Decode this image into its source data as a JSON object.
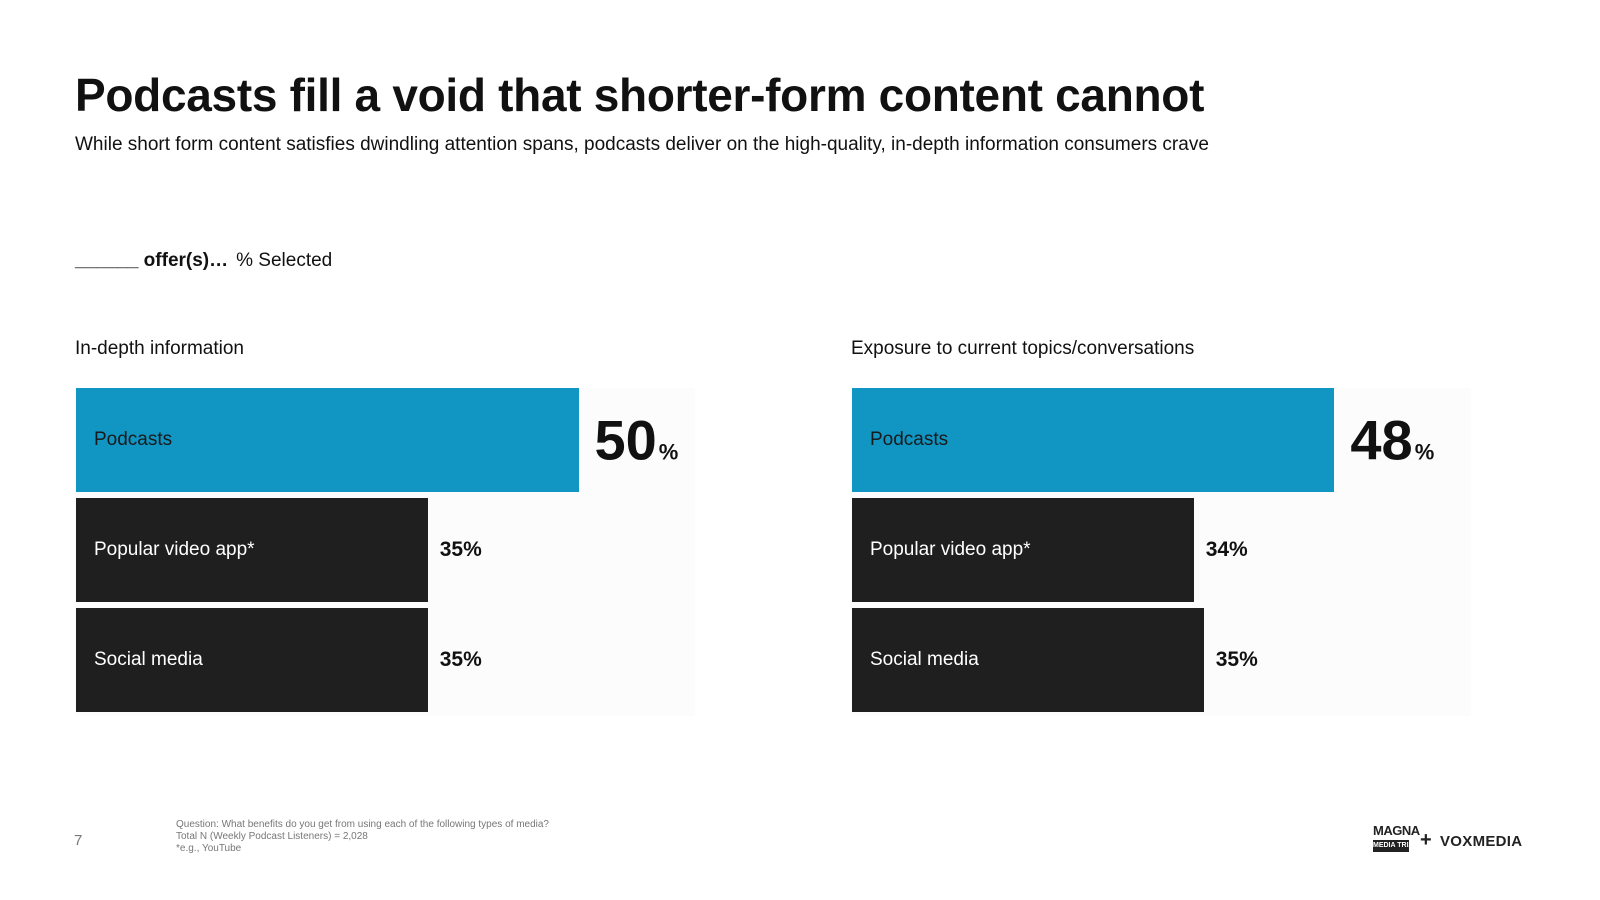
{
  "slide": {
    "title": "Podcasts fill a void that shorter-form content cannot",
    "subtitle": "While short form content satisfies dwindling attention spans, podcasts deliver on the high-quality, in-depth information consumers crave",
    "question_bold": "______ offer(s)…",
    "question_normal": "% Selected"
  },
  "colors": {
    "podcasts": "#1196c3",
    "other": "#1f1f1f",
    "label_on_blue": "#1a1a1a",
    "label_on_dark": "#ffffff"
  },
  "chart_data": [
    {
      "type": "bar",
      "orientation": "horizontal",
      "title": "In-depth information",
      "categories": [
        "Podcasts",
        "Popular video app*",
        "Social media"
      ],
      "values": [
        50,
        35,
        35
      ],
      "value_labels": [
        "50",
        "35%",
        "35%"
      ],
      "unit": "%",
      "xlim": [
        0,
        62
      ]
    },
    {
      "type": "bar",
      "orientation": "horizontal",
      "title": "Exposure to current topics/conversations",
      "categories": [
        "Podcasts",
        "Popular video app*",
        "Social media"
      ],
      "values": [
        48,
        34,
        35
      ],
      "value_labels": [
        "48",
        "34%",
        "35%"
      ],
      "unit": "%",
      "xlim": [
        0,
        62
      ]
    }
  ],
  "footer": {
    "page_number": "7",
    "footnotes": [
      "Question: What benefits do you get from using each of the following types of media?",
      "Total N (Weekly Podcast Listeners) = 2,028",
      "*e.g., YouTube"
    ],
    "logo_magna_top": "MAGNA",
    "logo_magna_bottom": "MEDIA TRIALS",
    "logo_plus": "+",
    "logo_vox": "VOXMEDIA"
  }
}
